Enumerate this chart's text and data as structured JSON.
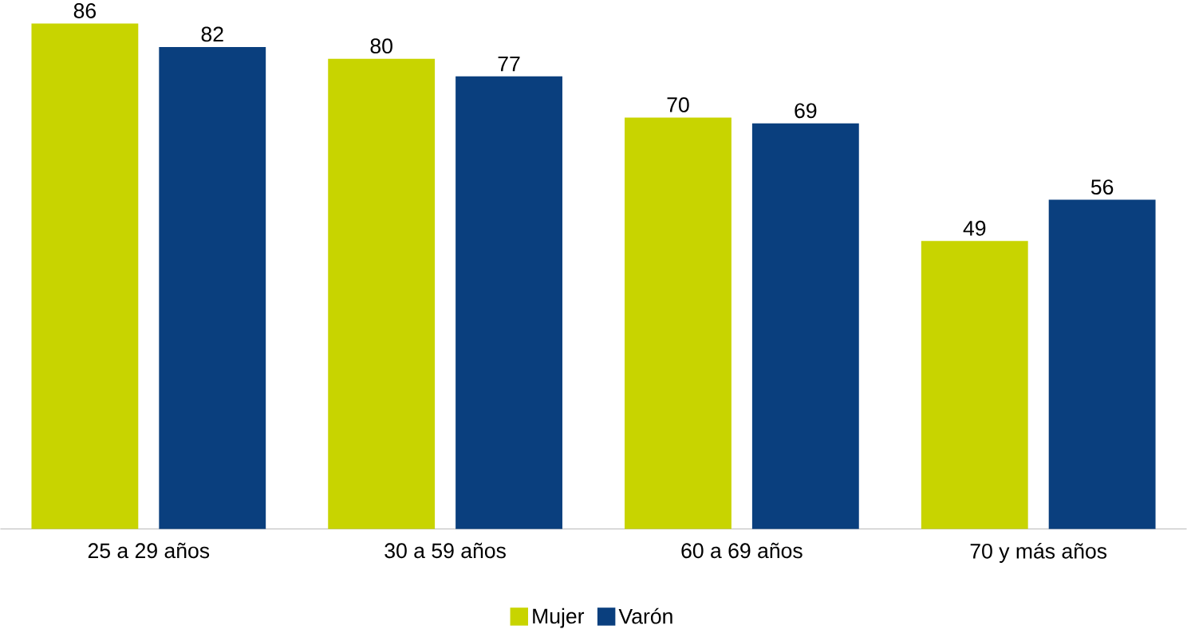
{
  "chart_data": {
    "type": "bar",
    "categories": [
      "25 a 29 años",
      "30 a 59 años",
      "60 a 69 años",
      "70 y más años"
    ],
    "series": [
      {
        "name": "Mujer",
        "color": "#c8d400",
        "values": [
          86,
          80,
          70,
          49
        ]
      },
      {
        "name": "Varón",
        "color": "#0a3f7e",
        "values": [
          82,
          77,
          69,
          56
        ]
      }
    ],
    "data_labels": true,
    "legend": "bottom",
    "grid": false
  }
}
